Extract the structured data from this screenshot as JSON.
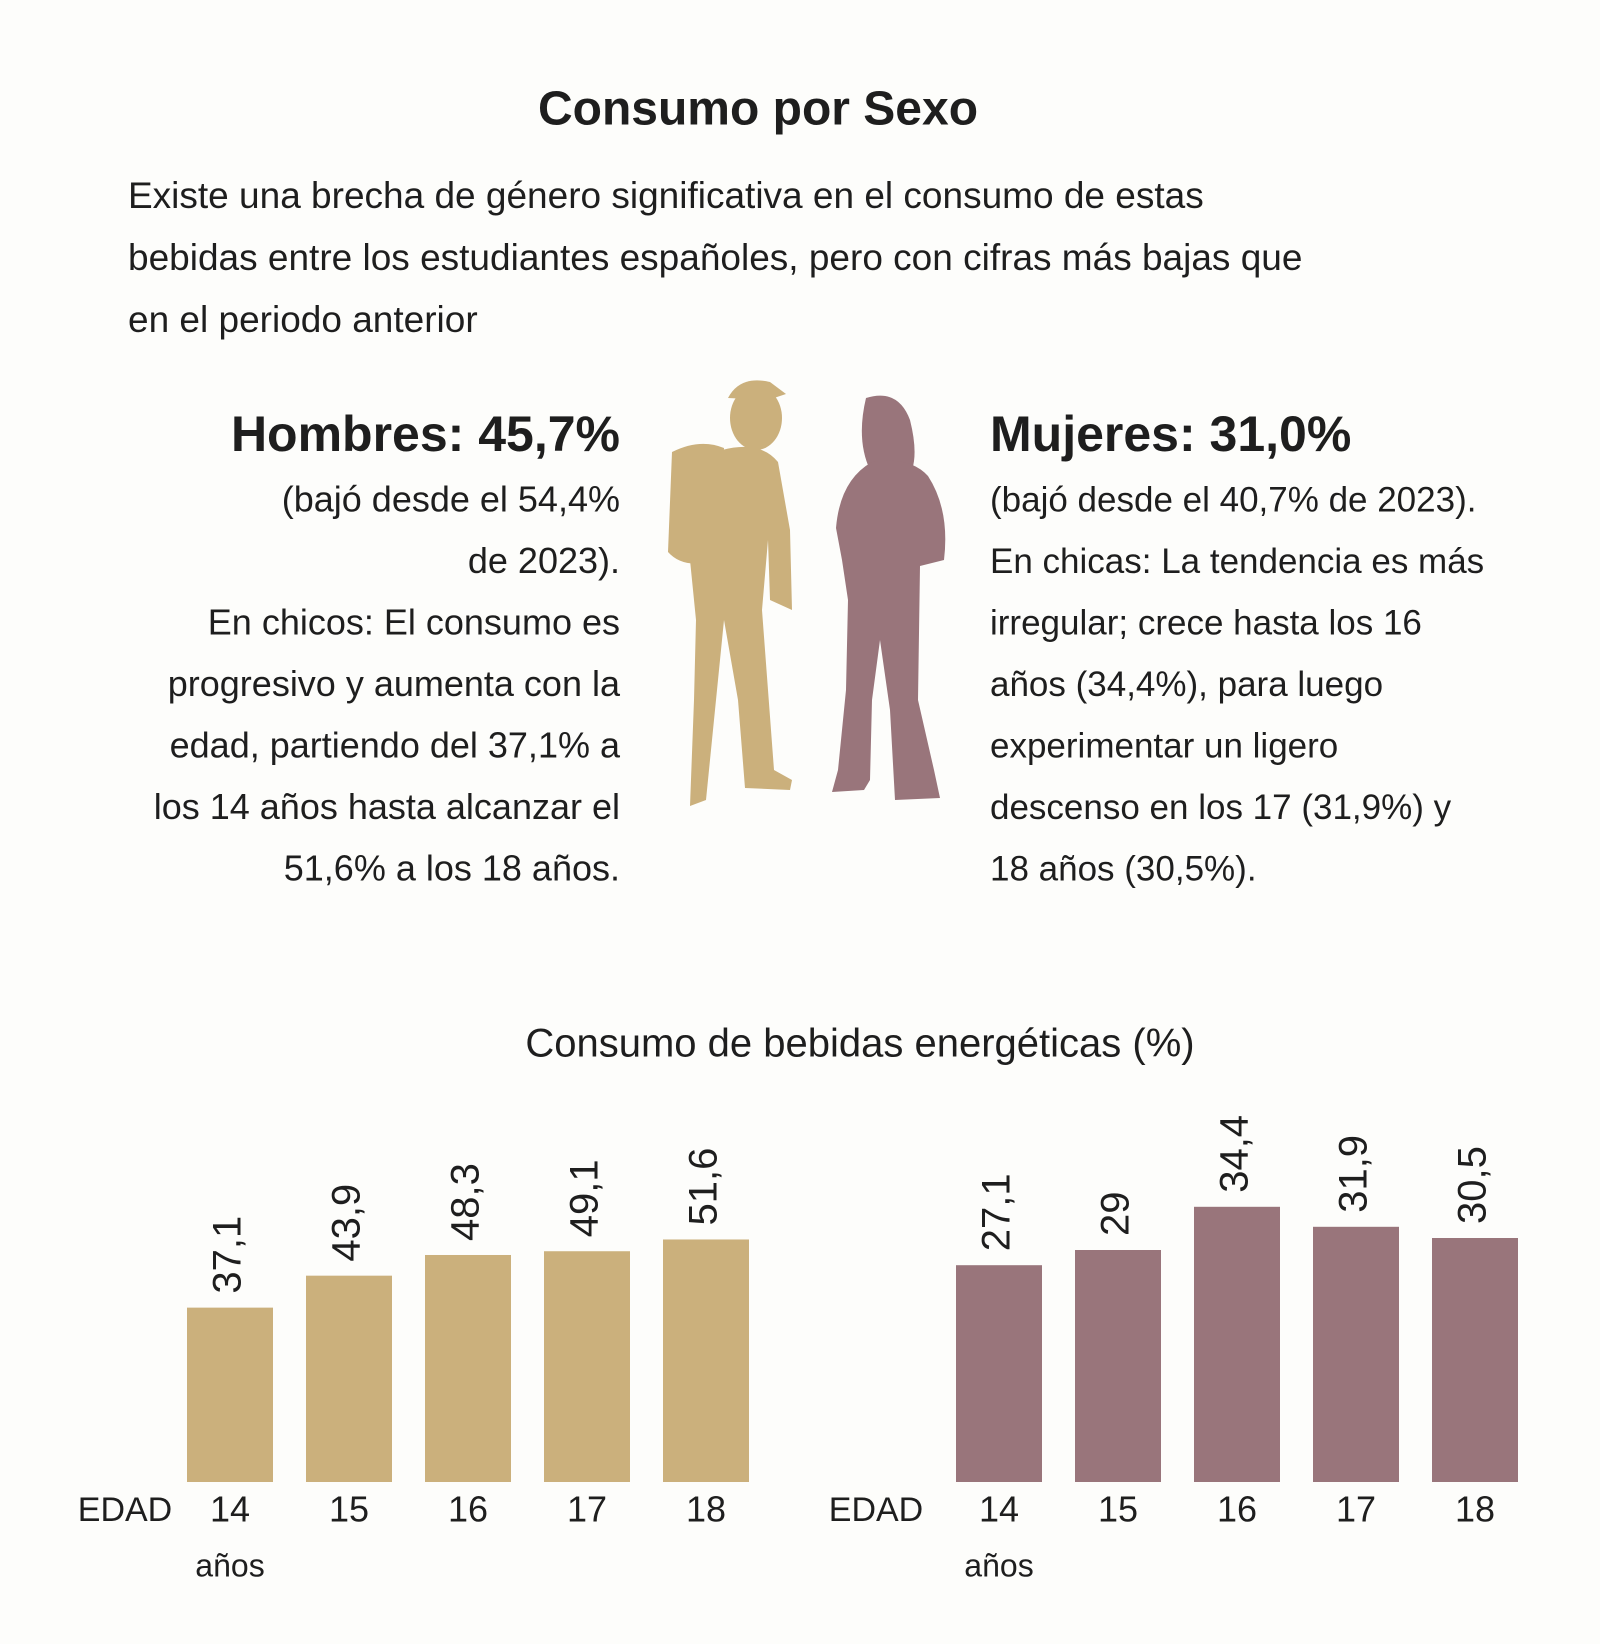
{
  "title": "Consumo por Sexo",
  "intro": [
    "Existe una brecha de género significativa en el consumo de estas",
    "bebidas entre los estudiantes españoles, pero con cifras más bajas que",
    "en el periodo anterior"
  ],
  "hombres": {
    "heading": "Hombres: 45,7%",
    "lines": [
      "(bajó desde el 54,4%",
      "de 2023).",
      "En chicos: El consumo es",
      "progresivo y aumenta con la",
      "edad, partiendo del 37,1% a",
      "los 14 años hasta alcanzar el",
      "51,6% a los 18 años."
    ]
  },
  "mujeres": {
    "heading": "Mujeres: 31,0%",
    "lines": [
      "(bajó desde el 40,7% de 2023).",
      "En chicas: La tendencia es más",
      "irregular; crece hasta los 16",
      "años (34,4%), para luego",
      "experimentar un ligero",
      "descenso en los 17 (31,9%) y",
      "18 años (30,5%)."
    ]
  },
  "chart_title": "Consumo de bebidas energéticas (%)",
  "chart_data": [
    {
      "type": "bar",
      "xlabel": "EDAD",
      "xlabel_unit": "años",
      "categories": [
        "14",
        "15",
        "16",
        "17",
        "18"
      ],
      "values": [
        37.1,
        43.9,
        48.3,
        49.1,
        51.6
      ],
      "value_labels": [
        "37,1",
        "43,9",
        "48,3",
        "49,1",
        "51,6"
      ],
      "color": "#cbb07c",
      "ylim": [
        0,
        80
      ]
    },
    {
      "type": "bar",
      "xlabel": "EDAD",
      "xlabel_unit": "años",
      "categories": [
        "14",
        "15",
        "16",
        "17",
        "18"
      ],
      "values": [
        27.1,
        29,
        34.4,
        31.9,
        30.5
      ],
      "value_labels": [
        "27,1",
        "29",
        "34,4",
        "31,9",
        "30,5"
      ],
      "color": "#99757b",
      "ylim": [
        0,
        47
      ]
    }
  ]
}
